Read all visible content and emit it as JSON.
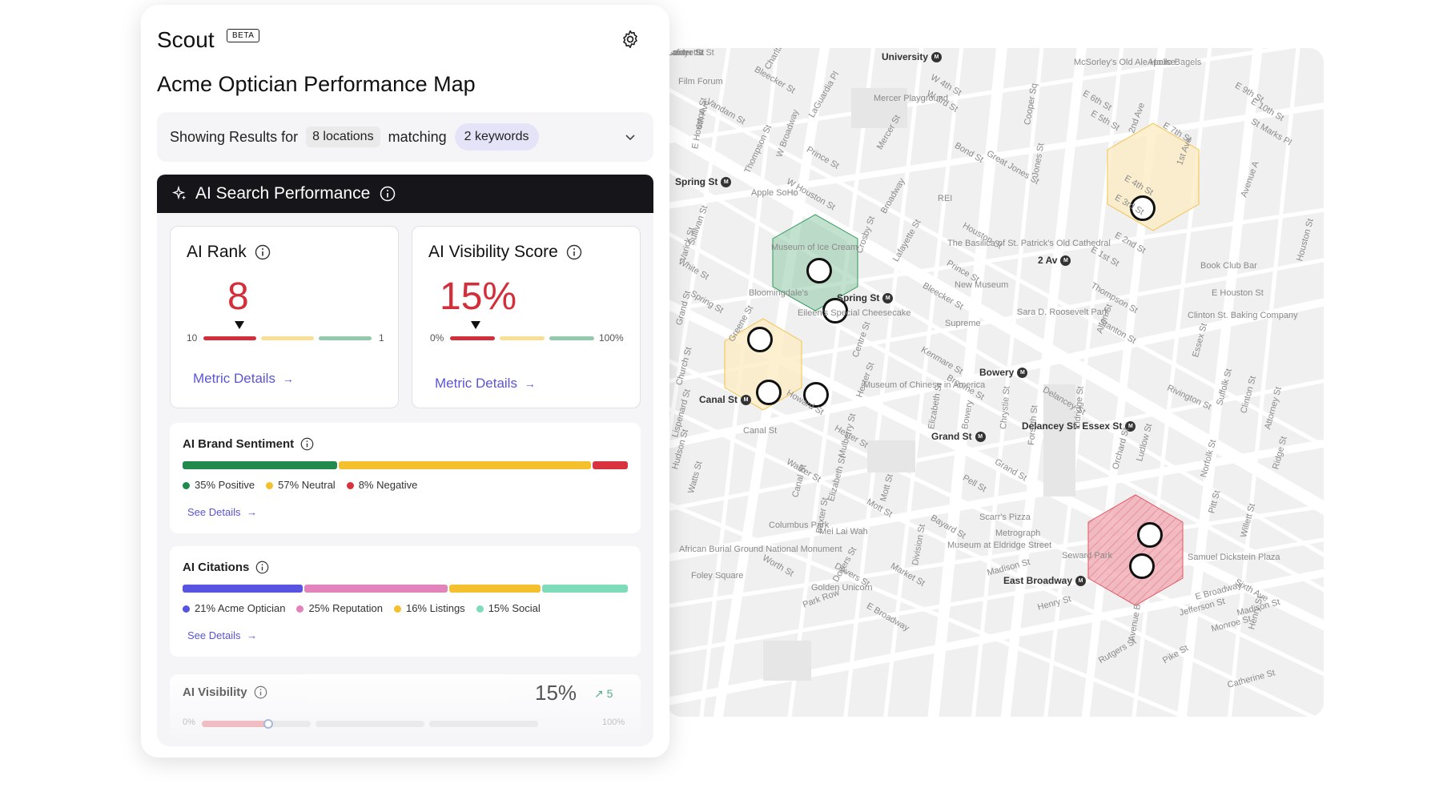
{
  "app": {
    "name": "Scout",
    "badge": "BETA"
  },
  "page": {
    "title": "Acme Optician Performance Map"
  },
  "filter": {
    "prefix": "Showing Results for",
    "locations": "8 locations",
    "middle": "matching",
    "keywords": "2 keywords"
  },
  "ai_section": {
    "title": "AI Search Performance"
  },
  "rank_card": {
    "title": "AI Rank",
    "value": "8",
    "min": "10",
    "max": "1",
    "link": "Metric Details"
  },
  "visibility_card": {
    "title": "AI Visibility Score",
    "value": "15%",
    "min": "0%",
    "max": "100%",
    "link": "Metric Details"
  },
  "sentiment": {
    "title": "AI Brand Sentiment",
    "segments": [
      {
        "label": "35% Positive",
        "value": 35,
        "color": "#1f8a4c"
      },
      {
        "label": "57% Neutral",
        "value": 57,
        "color": "#f5c02e"
      },
      {
        "label": "8% Negative",
        "value": 8,
        "color": "#d8323f"
      }
    ],
    "link": "See Details"
  },
  "citations": {
    "title": "AI Citations",
    "segments": [
      {
        "label": "21% Acme Optician",
        "value": 21,
        "color": "#5853e0"
      },
      {
        "label": "25% Reputation",
        "value": 25,
        "color": "#e283bb"
      },
      {
        "label": "16% Listings",
        "value": 16,
        "color": "#f5c02e"
      },
      {
        "label": "15% Social",
        "value": 15,
        "color": "#7fdcba"
      }
    ],
    "link": "See Details"
  },
  "ai_visibility": {
    "title": "AI Visibility",
    "value": "15%",
    "delta": "5",
    "min": "0%",
    "max": "100%",
    "level": 0.15
  },
  "map": {
    "labels": [
      "University",
      "Film Forum",
      "Bleecker St",
      "Spring St",
      "Apple SoHo",
      "Museum of Ice Cream",
      "Bloomingdale's",
      "Eileen's Special Cheesecake",
      "Canal St",
      "Spring St",
      "2 Av",
      "Bowery",
      "Grand St",
      "Delancey St- Essex St",
      "East Broadway",
      "Seward Park",
      "Columbus Park",
      "Mei Lai Wah",
      "Golden Unicorn",
      "Book Club Bar",
      "McSorley's Old Ale House",
      "Apollo Bagels",
      "Sara D. Roosevelt Park",
      "Clinton St. Baking Company",
      "Scarr's Pizza",
      "Metrograph",
      "Samuel Dickstein Plaza",
      "The Basilica of St. Patrick's Old Cathedral",
      "New Museum",
      "Supreme",
      "REI",
      "Mercer Playground",
      "Foley Square",
      "African Burial Ground National Monument",
      "Museum of Chinese in America",
      "Museum at Eldridge Street",
      "Houston St",
      "E Houston St",
      "Broadway",
      "Kenmare St",
      "Broome St",
      "Delancey St",
      "Canal St",
      "Hester St",
      "Walker St",
      "Worth St",
      "Park Row",
      "Henry St",
      "Madison St",
      "Grand St",
      "E Broadway",
      "Rivington St",
      "Stanton St",
      "Prince St",
      "Mercer St",
      "Greene St",
      "Lafayette St",
      "Centre St",
      "Mulberry St",
      "Mott St",
      "Elizabeth St",
      "Bowery",
      "Chrystie St",
      "Forsyth St",
      "Eldridge St",
      "Allen St",
      "Orchard St",
      "Ludlow St",
      "Essex St",
      "Norfolk St",
      "Suffolk St",
      "Clinton St",
      "Attorney St",
      "Ridge St",
      "Pitt St",
      "Willett St",
      "Henry St",
      "2nd Ave",
      "1st Ave",
      "Avenue A",
      "E 7th St",
      "E 4th St",
      "E 2nd St",
      "E 1st St",
      "W 4th St",
      "W 3rd St",
      "Thompson St",
      "Sullivan St",
      "6th Ave",
      "Church St",
      "Crosby St",
      "Cooper Sq",
      "Great Jones St",
      "Bond St",
      "Jones St",
      "Baxter St",
      "Dovers St",
      "Doyers St",
      "Howard St",
      "Mott St",
      "E 6th St",
      "E 5th St",
      "E 3rd St",
      "E 9th St",
      "E 10th St",
      "St Marks Pl",
      "LaGuardia Pl",
      "W Broadway",
      "W Houston St",
      "Prince St",
      "Varick St",
      "Grand St",
      "Watts St",
      "Hudson St",
      "Lispenard St",
      "White St",
      "Spring St",
      "Vandam St",
      "Charlton St",
      "Bleecker St",
      "Thompson St",
      "E Houston St",
      "Houston St",
      "Sixth Ave",
      "Avenue B",
      "Pike St",
      "Rutgers St",
      "Monroe St",
      "Catherine St",
      "Jefferson St",
      "Madison St",
      "Market St",
      "E Broadway",
      "Division St",
      "Bayard St",
      "Pell St",
      "Elizabeth St",
      "Hester St",
      "Canal St",
      "Lafayette St",
      "Centre St",
      "Baxter St"
    ]
  }
}
